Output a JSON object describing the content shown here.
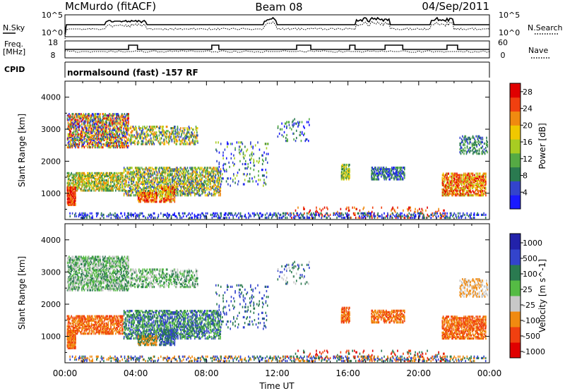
{
  "header": {
    "station": "McMurdo (fitACF)",
    "beam": "Beam 08",
    "date": "04/Sep/2011"
  },
  "noise_panel": {
    "left_label": "N.Sky",
    "left_ticks": [
      "10^5",
      "10^0"
    ],
    "right_ticks": [
      "10^5",
      "10^0"
    ],
    "right_label": "N.Search"
  },
  "freq_panel": {
    "left_label_1": "Freq.",
    "left_label_2": "[MHz]",
    "left_ticks": [
      "18",
      "8"
    ],
    "right_ticks": [
      "60",
      "0"
    ],
    "right_label": "Nave"
  },
  "cpid": {
    "label": "CPID",
    "text": "normalsound (fast) -157 RF"
  },
  "colors": {
    "power_scale": [
      "#1a1aff",
      "#3344cc",
      "#2a7a50",
      "#55aa44",
      "#a8cc22",
      "#f0c800",
      "#f08a10",
      "#f04010",
      "#e00000"
    ],
    "velocity_scale": [
      "#e00000",
      "#f04010",
      "#f08a10",
      "#c8c8c8",
      "#55bb44",
      "#2a7a50",
      "#3344cc",
      "#2222aa"
    ]
  },
  "chart_data": [
    {
      "type": "heatmap",
      "name": "power",
      "ylabel": "Slant Range [km]",
      "yticks": [
        "1000",
        "2000",
        "3000",
        "4000"
      ],
      "ylim": [
        180,
        4500
      ],
      "xlim": [
        0,
        24
      ],
      "colorbar_label": "Power [dB]",
      "colorbar_ticks": [
        "4",
        "8",
        "12",
        "16",
        "20",
        "24",
        "28"
      ],
      "colorbar_range": [
        0,
        30
      ]
    },
    {
      "type": "heatmap",
      "name": "velocity",
      "ylabel": "Slant Range [km]",
      "yticks": [
        "1000",
        "2000",
        "3000",
        "4000"
      ],
      "ylim": [
        180,
        4500
      ],
      "xlim": [
        0,
        24
      ],
      "colorbar_label": "Velocity [m s^-1]",
      "colorbar_ticks": [
        "1000",
        "500",
        "100",
        "25",
        "-25",
        "-100",
        "-500",
        "-1000"
      ]
    }
  ],
  "xaxis": {
    "ticks": [
      "00:00",
      "04:00",
      "08:00",
      "12:00",
      "16:00",
      "20:00",
      "00:00"
    ],
    "label": "Time UT"
  }
}
